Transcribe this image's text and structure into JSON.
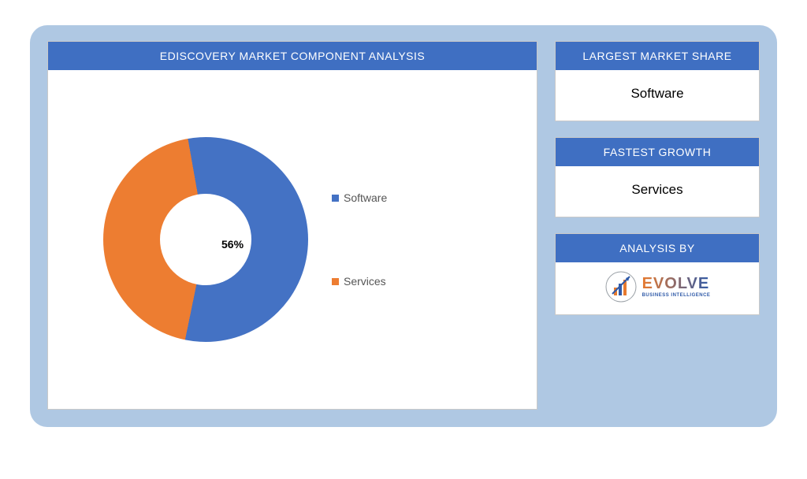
{
  "layout": {
    "outer_bg": "#afc8e3",
    "panel_border": "#c9c9c9",
    "header_bg": "#3f6fc2",
    "header_color": "#ffffff",
    "body_bg": "#ffffff"
  },
  "chart": {
    "type": "donut",
    "title": "EDISCOVERY MARKET COMPONENT ANALYSIS",
    "series": [
      {
        "label": "Software",
        "value": 56,
        "color": "#4472c4"
      },
      {
        "label": "Services",
        "value": 44,
        "color": "#ed7d31"
      }
    ],
    "start_angle_deg": -10,
    "inner_radius_pct": 45,
    "show_label_pct": "56%",
    "label_fontsize": 14,
    "legend_fontsize": 14,
    "legend_text_color": "#595959"
  },
  "cards": {
    "largest": {
      "title": "LARGEST MARKET SHARE",
      "value": "Software"
    },
    "fastest": {
      "title": "FASTEST GROWTH",
      "value": "Services"
    },
    "analysis": {
      "title": "ANALYSIS BY"
    }
  },
  "logo": {
    "main": "EVOLVE",
    "sub": "BUSINESS INTELLIGENCE",
    "orange": "#e77a2f",
    "blue": "#2f5aa8",
    "gray": "#9aa0a6"
  }
}
